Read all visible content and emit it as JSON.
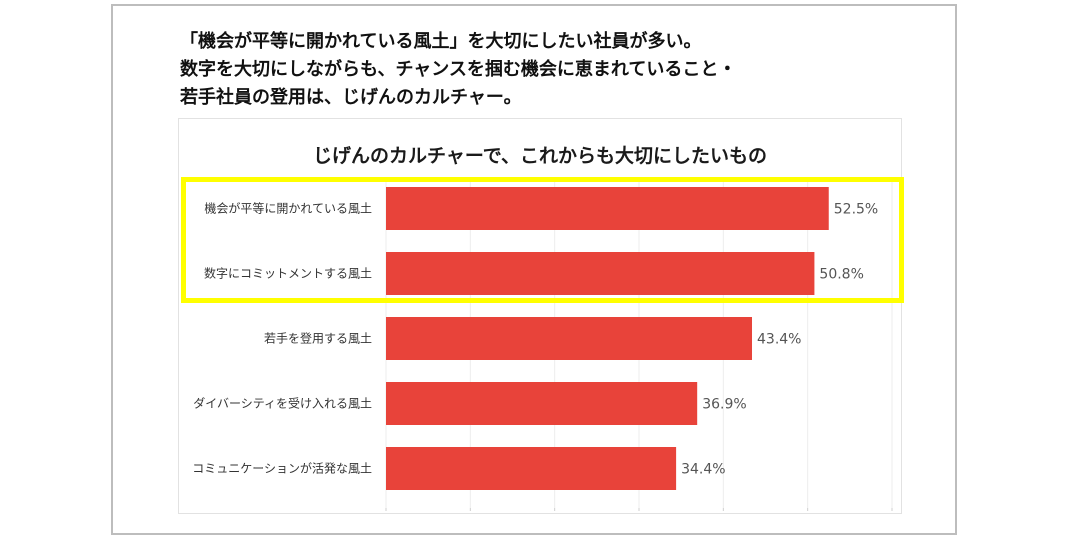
{
  "headline": {
    "lines": [
      "「機会が平等に開かれている風土」を大切にしたい社員が多い。",
      "数字を大切にしながらも、チャンスを掴む機会に恵まれていること・",
      "若手社員の登用は、じげんのカルチャー。"
    ]
  },
  "chart_data": {
    "type": "bar",
    "orientation": "horizontal",
    "title": "じげんのカルチャーで、これからも大切にしたいもの",
    "categories": [
      "機会が平等に開かれている風土",
      "数字にコミットメントする風土",
      "若手を登用する風土",
      "ダイバーシティを受け入れる風土",
      "コミュニケーションが活発な風土"
    ],
    "values": [
      52.5,
      50.8,
      43.4,
      36.9,
      34.4
    ],
    "value_labels": [
      "52.5%",
      "50.8%",
      "43.4%",
      "36.9%",
      "34.4%"
    ],
    "unit": "%",
    "xlim": [
      0,
      60
    ],
    "grid": true,
    "bar_color": "#e8433a",
    "highlight_color": "#ffff00",
    "highlighted_categories": [
      0,
      1
    ]
  }
}
